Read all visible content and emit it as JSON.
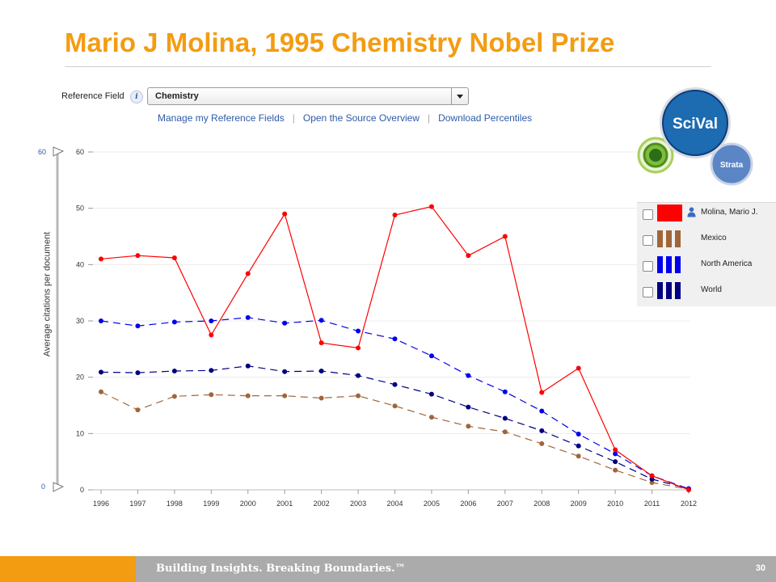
{
  "slide": {
    "title": "Mario J Molina, 1995 Chemistry Nobel Prize",
    "footer_text": "Building Insights. Breaking Boundaries.™",
    "page_number": "30",
    "accent_color": "#f39c12"
  },
  "controls": {
    "reference_field_label": "Reference Field",
    "reference_field_value": "Chemistry",
    "info_icon": "i",
    "links": [
      "Manage my Reference Fields",
      "Open the Source Overview",
      "Download Percentiles"
    ]
  },
  "scale_slider": {
    "top": "60",
    "bottom": "0"
  },
  "logo": {
    "main": "SciVal",
    "sub": "Strata"
  },
  "legend": [
    {
      "label": "Molina, Mario J.",
      "color": "#ff0000",
      "style": "solid",
      "icon": "person-icon"
    },
    {
      "label": "Mexico",
      "color": "#a0663a",
      "style": "dashed"
    },
    {
      "label": "North America",
      "color": "#0000ee",
      "style": "dashed"
    },
    {
      "label": "World",
      "color": "#000080",
      "style": "dashed"
    }
  ],
  "chart_data": {
    "type": "line",
    "title": "",
    "xlabel": "",
    "ylabel": "Average citations per document",
    "x": [
      "1996",
      "1997",
      "1998",
      "1999",
      "2000",
      "2001",
      "2002",
      "2003",
      "2004",
      "2005",
      "2006",
      "2007",
      "2008",
      "2009",
      "2010",
      "2011",
      "2012"
    ],
    "ylim": [
      0,
      60
    ],
    "yticks": [
      "0",
      "10",
      "20",
      "30",
      "40",
      "50",
      "60"
    ],
    "grid": true,
    "legend_position": "right",
    "series": [
      {
        "name": "Molina, Mario J.",
        "color": "#ff0000",
        "dash": false,
        "values": [
          41.0,
          41.6,
          41.2,
          27.5,
          38.4,
          49.0,
          26.1,
          25.2,
          48.8,
          50.3,
          41.6,
          45.0,
          17.3,
          21.6,
          7.1,
          2.5,
          0
        ]
      },
      {
        "name": "North America",
        "color": "#0000ee",
        "dash": true,
        "values": [
          30.0,
          29.1,
          29.8,
          30.0,
          30.6,
          29.6,
          30.1,
          28.2,
          26.8,
          23.8,
          20.3,
          17.4,
          14.0,
          9.9,
          6.4,
          2.5,
          0.2
        ]
      },
      {
        "name": "World",
        "color": "#000080",
        "dash": true,
        "values": [
          20.9,
          20.8,
          21.1,
          21.2,
          22.0,
          21.0,
          21.1,
          20.3,
          18.7,
          17.0,
          14.7,
          12.7,
          10.5,
          7.8,
          5.0,
          1.9,
          0.2
        ]
      },
      {
        "name": "Mexico",
        "color": "#a0663a",
        "dash": true,
        "values": [
          17.4,
          14.2,
          16.6,
          16.9,
          16.7,
          16.7,
          16.3,
          16.7,
          14.9,
          12.9,
          11.3,
          10.3,
          8.2,
          6.0,
          3.5,
          1.3,
          0.1
        ]
      }
    ]
  }
}
